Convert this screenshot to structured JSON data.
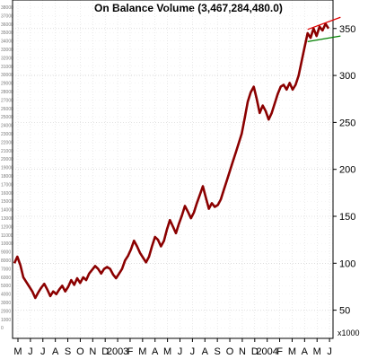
{
  "chart_data": {
    "type": "line",
    "title": "On Balance Volume (3,467,284,480.0)",
    "y_units": "x1000",
    "ylim": [
      20,
      375
    ],
    "y_ticks": [
      50,
      100,
      150,
      200,
      250,
      300,
      350
    ],
    "x_labels": [
      "M",
      "J",
      "J",
      "A",
      "S",
      "O",
      "N",
      "D",
      "2003",
      "F",
      "M",
      "A",
      "M",
      "J",
      "J",
      "A",
      "S",
      "O",
      "N",
      "D",
      "2004",
      "F",
      "M",
      "A",
      "M",
      "J"
    ],
    "series": [
      {
        "color": "#8b0000",
        "values": [
          100,
          107,
          98,
          85,
          80,
          75,
          70,
          63,
          69,
          74,
          78,
          72,
          65,
          70,
          67,
          72,
          76,
          70,
          75,
          82,
          77,
          84,
          79,
          85,
          82,
          89,
          93,
          97,
          94,
          89,
          94,
          96,
          94,
          88,
          84,
          89,
          94,
          103,
          108,
          115,
          124,
          118,
          111,
          106,
          101,
          107,
          118,
          128,
          125,
          118,
          124,
          136,
          146,
          139,
          132,
          142,
          151,
          161,
          155,
          148,
          154,
          164,
          173,
          182,
          170,
          158,
          164,
          160,
          162,
          168,
          178,
          188,
          198,
          208,
          218,
          228,
          238,
          255,
          272,
          282,
          288,
          275,
          260,
          268,
          262,
          253,
          260,
          270,
          280,
          288,
          290,
          285,
          292,
          285,
          290,
          300,
          315,
          330,
          345,
          340,
          350,
          342,
          352,
          348,
          355,
          350
        ]
      }
    ],
    "trendlines": [
      {
        "color": "#e00000",
        "start": [
          98,
          349
        ],
        "end": [
          109,
          362
        ]
      },
      {
        "color": "#008000",
        "start": [
          98,
          336
        ],
        "end": [
          109,
          342
        ]
      }
    ],
    "faint_left_labels": [
      "38000",
      "37000",
      "36000",
      "35000",
      "34000",
      "33000",
      "32000",
      "31000",
      "30000",
      "29000",
      "28000",
      "27000",
      "26000",
      "25000",
      "24000",
      "23000",
      "22000",
      "21000",
      "20000",
      "19000",
      "18000",
      "17000",
      "16000",
      "15000",
      "14000",
      "13000",
      "12000",
      "11000",
      "10000",
      "9000",
      "8000",
      "7000",
      "6000",
      "5000",
      "4000",
      "3000",
      "2000",
      "1000",
      "0"
    ]
  }
}
